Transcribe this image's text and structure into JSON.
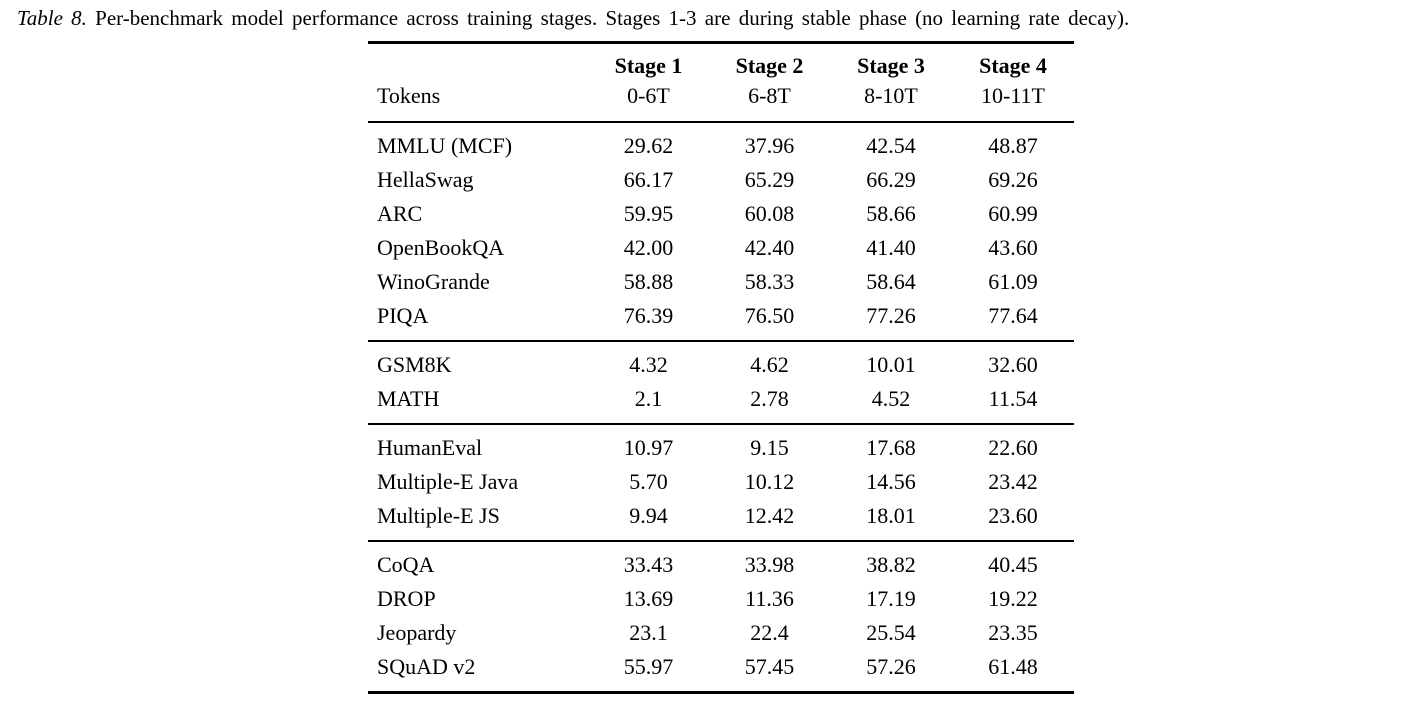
{
  "caption": {
    "label": "Table 8.",
    "text": "Per-benchmark model performance across training stages. Stages 1-3 are during stable phase (no learning rate decay)."
  },
  "table": {
    "columns": {
      "row_label_header": "Tokens",
      "stages": [
        "Stage 1",
        "Stage 2",
        "Stage 3",
        "Stage 4"
      ],
      "token_ranges": [
        "0-6T",
        "6-8T",
        "8-10T",
        "10-11T"
      ]
    },
    "groups": [
      {
        "rows": [
          {
            "name": "MMLU (MCF)",
            "values": [
              "29.62",
              "37.96",
              "42.54",
              "48.87"
            ],
            "bold_index": 3
          },
          {
            "name": "HellaSwag",
            "values": [
              "66.17",
              "65.29",
              "66.29",
              "69.26"
            ],
            "bold_index": 3
          },
          {
            "name": "ARC",
            "values": [
              "59.95",
              "60.08",
              "58.66",
              "60.99"
            ],
            "bold_index": 3
          },
          {
            "name": "OpenBookQA",
            "values": [
              "42.00",
              "42.40",
              "41.40",
              "43.60"
            ],
            "bold_index": 3
          },
          {
            "name": "WinoGrande",
            "values": [
              "58.88",
              "58.33",
              "58.64",
              "61.09"
            ],
            "bold_index": 3
          },
          {
            "name": "PIQA",
            "values": [
              "76.39",
              "76.50",
              "77.26",
              "77.64"
            ],
            "bold_index": 3
          }
        ]
      },
      {
        "rows": [
          {
            "name": "GSM8K",
            "values": [
              "4.32",
              "4.62",
              "10.01",
              "32.60"
            ],
            "bold_index": 3
          },
          {
            "name": "MATH",
            "values": [
              "2.1",
              "2.78",
              "4.52",
              "11.54"
            ],
            "bold_index": 3
          }
        ]
      },
      {
        "rows": [
          {
            "name": "HumanEval",
            "values": [
              "10.97",
              "9.15",
              "17.68",
              "22.60"
            ],
            "bold_index": 3
          },
          {
            "name": "Multiple-E Java",
            "values": [
              "5.70",
              "10.12",
              "14.56",
              "23.42"
            ],
            "bold_index": 3
          },
          {
            "name": "Multiple-E JS",
            "values": [
              "9.94",
              "12.42",
              "18.01",
              "23.60"
            ],
            "bold_index": 3
          }
        ]
      },
      {
        "rows": [
          {
            "name": "CoQA",
            "values": [
              "33.43",
              "33.98",
              "38.82",
              "40.45"
            ],
            "bold_index": 3
          },
          {
            "name": "DROP",
            "values": [
              "13.69",
              "11.36",
              "17.19",
              "19.22"
            ],
            "bold_index": 3
          },
          {
            "name": "Jeopardy",
            "values": [
              "23.1",
              "22.4",
              "25.54",
              "23.35"
            ],
            "bold_index": 2
          },
          {
            "name": "SQuAD v2",
            "values": [
              "55.97",
              "57.45",
              "57.26",
              "61.48"
            ],
            "bold_index": 3
          }
        ]
      }
    ]
  }
}
